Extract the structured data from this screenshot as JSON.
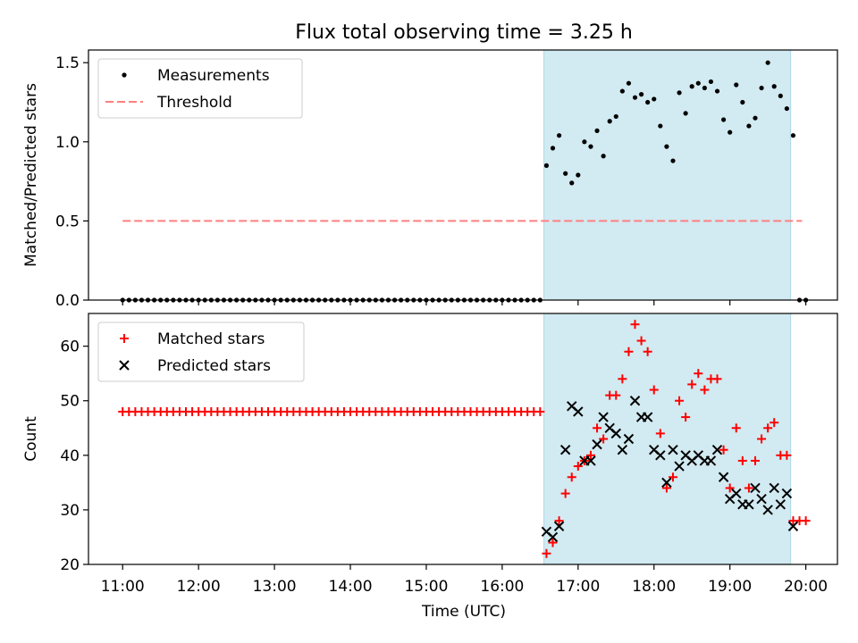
{
  "title": "Flux total observing time = 3.25 h",
  "xlabel": "Time (UTC)",
  "colors": {
    "shade": "#add8e6",
    "threshold": "#ff7f7f",
    "matched": "#ff0000",
    "predicted": "#000000",
    "measure": "#000000"
  },
  "chart_data": [
    {
      "type": "scatter",
      "ylabel": "Matched/Predicted stars",
      "xlim": [
        "10:33",
        "20:25"
      ],
      "ylim": [
        0,
        1.58
      ],
      "yticks": [
        "0.0",
        "0.5",
        "1.0",
        "1.5"
      ],
      "ytick_values": [
        0,
        0.5,
        1.0,
        1.5
      ],
      "legend": [
        "Measurements",
        "Threshold"
      ],
      "legend_location": "upper left",
      "shaded_span": [
        "16:33",
        "19:48"
      ],
      "threshold": {
        "value": 0.5,
        "x": [
          "11:00",
          "19:57"
        ]
      },
      "series": [
        {
          "name": "Measurements",
          "marker": "dot",
          "x": [
            "11:00",
            "11:05",
            "11:10",
            "11:15",
            "11:20",
            "11:25",
            "11:30",
            "11:35",
            "11:40",
            "11:45",
            "11:50",
            "11:55",
            "12:00",
            "12:05",
            "12:10",
            "12:15",
            "12:20",
            "12:25",
            "12:30",
            "12:35",
            "12:40",
            "12:45",
            "12:50",
            "12:55",
            "13:00",
            "13:05",
            "13:10",
            "13:15",
            "13:20",
            "13:25",
            "13:30",
            "13:35",
            "13:40",
            "13:45",
            "13:50",
            "13:55",
            "14:00",
            "14:05",
            "14:10",
            "14:15",
            "14:20",
            "14:25",
            "14:30",
            "14:35",
            "14:40",
            "14:45",
            "14:50",
            "14:55",
            "15:00",
            "15:05",
            "15:10",
            "15:15",
            "15:20",
            "15:25",
            "15:30",
            "15:35",
            "15:40",
            "15:45",
            "15:50",
            "15:55",
            "16:00",
            "16:05",
            "16:10",
            "16:15",
            "16:20",
            "16:25",
            "16:30",
            "16:35",
            "16:40",
            "16:45",
            "16:50",
            "16:55",
            "17:00",
            "17:05",
            "17:10",
            "17:15",
            "17:20",
            "17:25",
            "17:30",
            "17:35",
            "17:40",
            "17:45",
            "17:50",
            "17:55",
            "18:00",
            "18:05",
            "18:10",
            "18:15",
            "18:20",
            "18:25",
            "18:30",
            "18:35",
            "18:40",
            "18:45",
            "18:50",
            "18:55",
            "19:00",
            "19:05",
            "19:10",
            "19:15",
            "19:20",
            "19:25",
            "19:30",
            "19:35",
            "19:40",
            "19:45",
            "19:50",
            "19:55",
            "20:00"
          ],
          "y": [
            0,
            0,
            0,
            0,
            0,
            0,
            0,
            0,
            0,
            0,
            0,
            0,
            0,
            0,
            0,
            0,
            0,
            0,
            0,
            0,
            0,
            0,
            0,
            0,
            0,
            0,
            0,
            0,
            0,
            0,
            0,
            0,
            0,
            0,
            0,
            0,
            0,
            0,
            0,
            0,
            0,
            0,
            0,
            0,
            0,
            0,
            0,
            0,
            0,
            0,
            0,
            0,
            0,
            0,
            0,
            0,
            0,
            0,
            0,
            0,
            0,
            0,
            0,
            0,
            0,
            0,
            0,
            0.85,
            0.96,
            1.04,
            0.8,
            0.74,
            0.79,
            1.0,
            0.97,
            1.07,
            0.91,
            1.13,
            1.16,
            1.32,
            1.37,
            1.28,
            1.3,
            1.25,
            1.27,
            1.1,
            0.97,
            0.88,
            1.31,
            1.18,
            1.35,
            1.37,
            1.34,
            1.38,
            1.32,
            1.14,
            1.06,
            1.36,
            1.25,
            1.1,
            1.15,
            1.34,
            1.5,
            1.35,
            1.29,
            1.21,
            1.04,
            0,
            0
          ]
        }
      ]
    },
    {
      "type": "scatter",
      "ylabel": "Count",
      "xlim": [
        "10:33",
        "20:25"
      ],
      "ylim": [
        20,
        66
      ],
      "yticks": [
        "20",
        "30",
        "40",
        "50",
        "60"
      ],
      "ytick_values": [
        20,
        30,
        40,
        50,
        60
      ],
      "xticks": [
        "11:00",
        "12:00",
        "13:00",
        "14:00",
        "15:00",
        "16:00",
        "17:00",
        "18:00",
        "19:00",
        "20:00"
      ],
      "legend": [
        "Matched stars",
        "Predicted stars"
      ],
      "legend_location": "upper left",
      "shaded_span": [
        "16:33",
        "19:48"
      ],
      "series": [
        {
          "name": "Matched stars",
          "marker": "plus",
          "x": [
            "11:00",
            "11:05",
            "11:10",
            "11:15",
            "11:20",
            "11:25",
            "11:30",
            "11:35",
            "11:40",
            "11:45",
            "11:50",
            "11:55",
            "12:00",
            "12:05",
            "12:10",
            "12:15",
            "12:20",
            "12:25",
            "12:30",
            "12:35",
            "12:40",
            "12:45",
            "12:50",
            "12:55",
            "13:00",
            "13:05",
            "13:10",
            "13:15",
            "13:20",
            "13:25",
            "13:30",
            "13:35",
            "13:40",
            "13:45",
            "13:50",
            "13:55",
            "14:00",
            "14:05",
            "14:10",
            "14:15",
            "14:20",
            "14:25",
            "14:30",
            "14:35",
            "14:40",
            "14:45",
            "14:50",
            "14:55",
            "15:00",
            "15:05",
            "15:10",
            "15:15",
            "15:20",
            "15:25",
            "15:30",
            "15:35",
            "15:40",
            "15:45",
            "15:50",
            "15:55",
            "16:00",
            "16:05",
            "16:10",
            "16:15",
            "16:20",
            "16:25",
            "16:30",
            "16:35",
            "16:40",
            "16:45",
            "16:50",
            "16:55",
            "17:00",
            "17:05",
            "17:10",
            "17:15",
            "17:20",
            "17:25",
            "17:30",
            "17:35",
            "17:40",
            "17:45",
            "17:50",
            "17:55",
            "18:00",
            "18:05",
            "18:10",
            "18:15",
            "18:20",
            "18:25",
            "18:30",
            "18:35",
            "18:40",
            "18:45",
            "18:50",
            "18:55",
            "19:00",
            "19:05",
            "19:10",
            "19:15",
            "19:20",
            "19:25",
            "19:30",
            "19:35",
            "19:40",
            "19:45",
            "19:50",
            "19:55",
            "20:00"
          ],
          "y": [
            48,
            48,
            48,
            48,
            48,
            48,
            48,
            48,
            48,
            48,
            48,
            48,
            48,
            48,
            48,
            48,
            48,
            48,
            48,
            48,
            48,
            48,
            48,
            48,
            48,
            48,
            48,
            48,
            48,
            48,
            48,
            48,
            48,
            48,
            48,
            48,
            48,
            48,
            48,
            48,
            48,
            48,
            48,
            48,
            48,
            48,
            48,
            48,
            48,
            48,
            48,
            48,
            48,
            48,
            48,
            48,
            48,
            48,
            48,
            48,
            48,
            48,
            48,
            48,
            48,
            48,
            48,
            22,
            24,
            28,
            33,
            36,
            38,
            39,
            40,
            45,
            43,
            51,
            51,
            54,
            59,
            64,
            61,
            59,
            52,
            44,
            34,
            36,
            50,
            47,
            53,
            55,
            52,
            54,
            54,
            41,
            34,
            45,
            39,
            34,
            39,
            43,
            45,
            46,
            40,
            40,
            28,
            28,
            28
          ]
        },
        {
          "name": "Predicted stars",
          "marker": "x",
          "x": [
            "16:35",
            "16:40",
            "16:45",
            "16:50",
            "16:55",
            "17:00",
            "17:05",
            "17:10",
            "17:15",
            "17:20",
            "17:25",
            "17:30",
            "17:35",
            "17:40",
            "17:45",
            "17:50",
            "17:55",
            "18:00",
            "18:05",
            "18:10",
            "18:15",
            "18:20",
            "18:25",
            "18:30",
            "18:35",
            "18:40",
            "18:45",
            "18:50",
            "18:55",
            "19:00",
            "19:05",
            "19:10",
            "19:15",
            "19:20",
            "19:25",
            "19:30",
            "19:35",
            "19:40",
            "19:45",
            "19:50"
          ],
          "y": [
            26,
            25,
            27,
            41,
            49,
            48,
            39,
            39,
            42,
            47,
            45,
            44,
            41,
            43,
            50,
            47,
            47,
            41,
            40,
            35,
            41,
            38,
            40,
            39,
            40,
            39,
            39,
            41,
            36,
            32,
            33,
            31,
            31,
            34,
            32,
            30,
            34,
            31,
            33,
            27
          ]
        }
      ]
    }
  ]
}
